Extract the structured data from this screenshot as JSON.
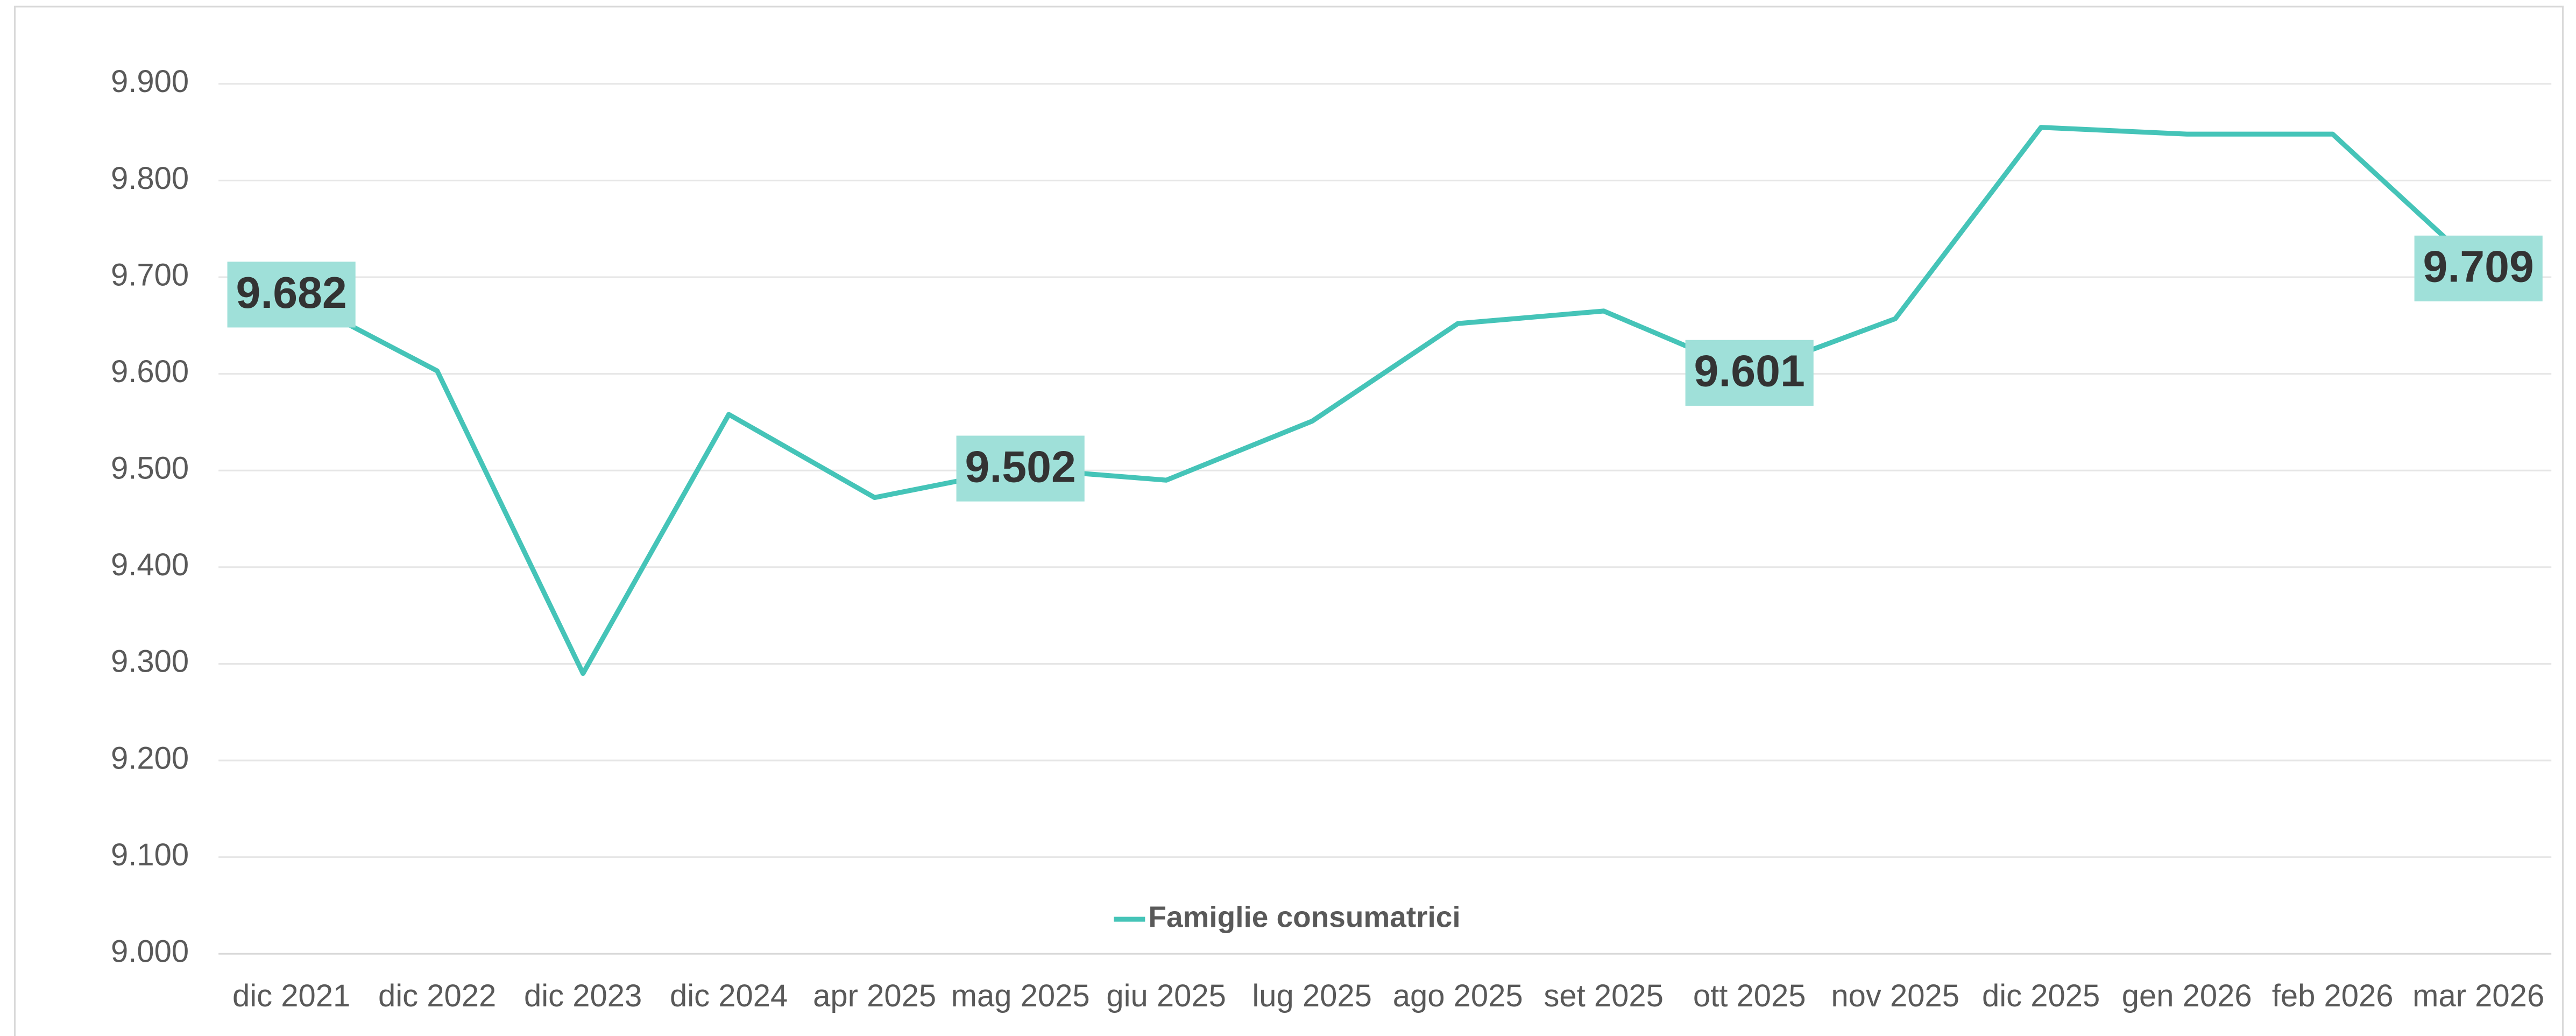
{
  "chart_data": {
    "type": "line",
    "categories": [
      "dic 2021",
      "dic 2022",
      "dic 2023",
      "dic 2024",
      "apr 2025",
      "mag 2025",
      "giu 2025",
      "lug 2025",
      "ago 2025",
      "set 2025",
      "ott 2025",
      "nov 2025",
      "dic 2025",
      "gen 2026",
      "feb 2026",
      "mar 2026"
    ],
    "series": [
      {
        "name": "Famiglie consumatrici",
        "color": "#45c4b8",
        "values": [
          9682,
          9603,
          9290,
          9558,
          9472,
          9502,
          9490,
          9551,
          9652,
          9665,
          9601,
          9657,
          9855,
          9848,
          9848,
          9709
        ],
        "value_labels": [
          "9.682",
          null,
          null,
          null,
          null,
          "9.502",
          null,
          null,
          null,
          null,
          "9.601",
          null,
          null,
          null,
          null,
          "9.709"
        ]
      }
    ],
    "ylim": [
      9000,
      9900
    ],
    "yticks": [
      {
        "value": 9000,
        "label": "9.000"
      },
      {
        "value": 9100,
        "label": "9.100"
      },
      {
        "value": 9200,
        "label": "9.200"
      },
      {
        "value": 9300,
        "label": "9.300"
      },
      {
        "value": 9400,
        "label": "9.400"
      },
      {
        "value": 9500,
        "label": "9.500"
      },
      {
        "value": 9600,
        "label": "9.600"
      },
      {
        "value": 9700,
        "label": "9.700"
      },
      {
        "value": 9800,
        "label": "9.800"
      },
      {
        "value": 9900,
        "label": "9.900"
      }
    ],
    "grid": true,
    "legend": "bottom"
  }
}
